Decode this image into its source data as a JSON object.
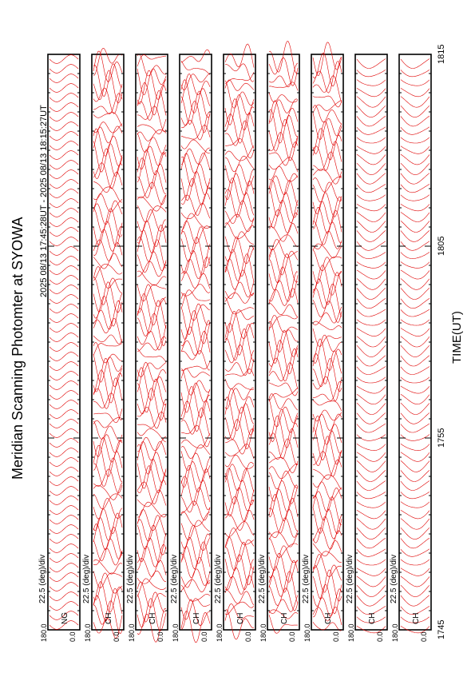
{
  "chart_data": {
    "type": "line",
    "title": "Meridian Scanning Photomter at SYOWA",
    "time_range_label": "2025 08/13 17:45:28UT - 2025 08/13 18:15:27UT",
    "xlabel": "TIME(UT)",
    "x_ticks": [
      "1745",
      "1755",
      "1805",
      "1815"
    ],
    "xlim": [
      "17:45",
      "18:15"
    ],
    "ylim": [
      0.0,
      180.0
    ],
    "y_tick_labels": [
      "180.0",
      "0.0"
    ],
    "scale_label": "22.5 (deg)/div",
    "line_color": "#e00000",
    "grid": false,
    "panels": [
      {
        "label": "NG",
        "profile_count": 60,
        "pattern": "uniform oscillation"
      },
      {
        "label": "CH",
        "profile_count": 60,
        "pattern": "irregular"
      },
      {
        "label": "CH",
        "profile_count": 60,
        "pattern": "irregular"
      },
      {
        "label": "CH",
        "profile_count": 60,
        "pattern": "irregular"
      },
      {
        "label": "CH",
        "profile_count": 60,
        "pattern": "irregular"
      },
      {
        "label": "CH",
        "profile_count": 60,
        "pattern": "irregular"
      },
      {
        "label": "CH",
        "profile_count": 60,
        "pattern": "irregular"
      },
      {
        "label": "CH",
        "profile_count": 60,
        "pattern": "smooth"
      },
      {
        "label": "CH",
        "profile_count": 60,
        "pattern": "smooth"
      }
    ]
  }
}
